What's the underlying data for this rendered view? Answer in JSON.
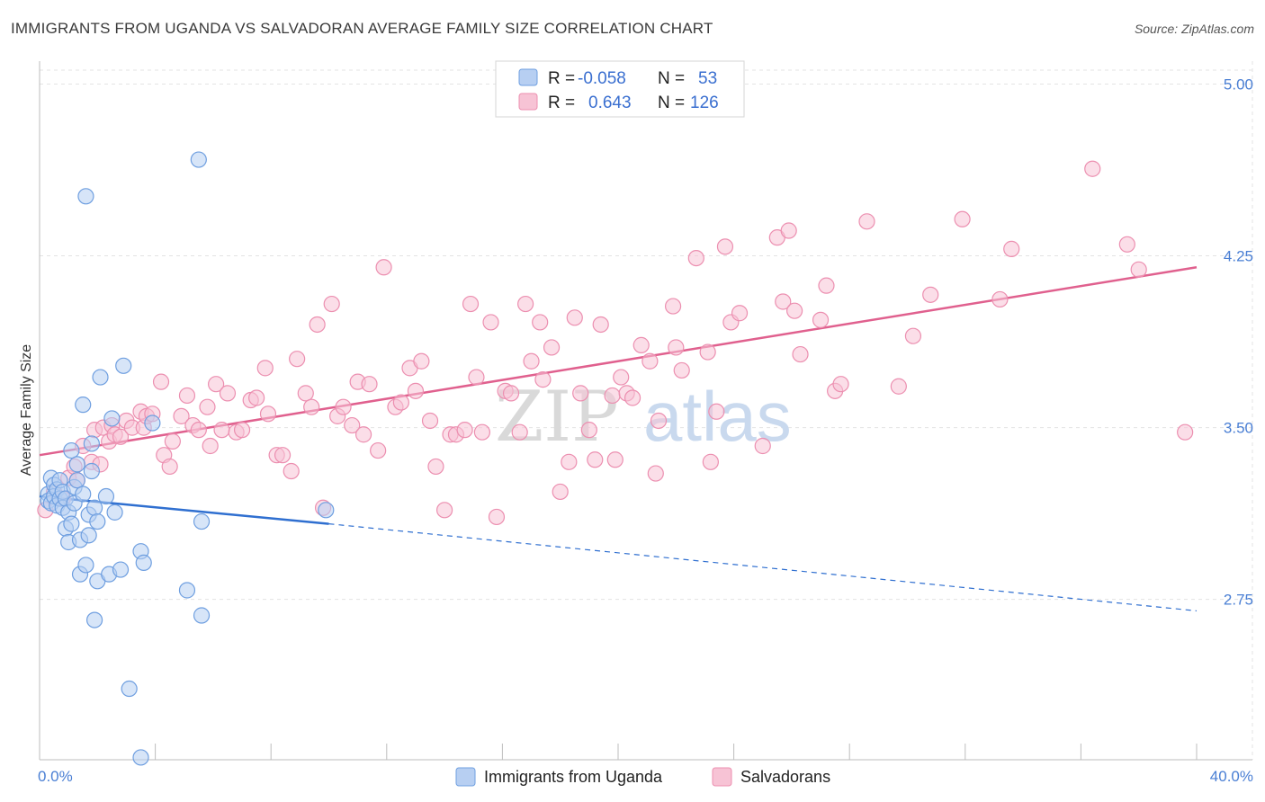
{
  "title": "IMMIGRANTS FROM UGANDA VS SALVADORAN AVERAGE FAMILY SIZE CORRELATION CHART",
  "source": "Source: ZipAtlas.com",
  "watermark": {
    "zip": "ZIP",
    "atlas": "atlas"
  },
  "legend": {
    "rows": [
      {
        "r_label": "R =",
        "r_value": "-0.058",
        "n_label": "N =",
        "n_value": "53",
        "color": "#a9c6f0"
      },
      {
        "r_label": "R =",
        "r_value": "0.643",
        "n_label": "N =",
        "n_value": "126",
        "color": "#f5b8cc"
      }
    ]
  },
  "bottom_legend": [
    {
      "label": "Immigrants from Uganda",
      "color": "#a9c6f0"
    },
    {
      "label": "Salvadorans",
      "color": "#f5b8cc"
    }
  ],
  "chart_data": {
    "type": "scatter",
    "xlabel": "",
    "ylabel": "Average Family Size",
    "xlim": [
      0,
      40
    ],
    "ylim": [
      2.05,
      5.1
    ],
    "x_tick_labels": [
      {
        "value": 0,
        "label": "0.0%"
      },
      {
        "value": 40,
        "label": "40.0%"
      }
    ],
    "y_ticks": [
      {
        "value": 2.75,
        "label": "2.75"
      },
      {
        "value": 3.5,
        "label": "3.50"
      },
      {
        "value": 4.25,
        "label": "4.25"
      },
      {
        "value": 5.0,
        "label": "5.00"
      }
    ],
    "grid": "horizontal-dashed",
    "legend_position": "top-center",
    "series": [
      {
        "name": "Immigrants from Uganda",
        "color": "#6f9fe0",
        "fill": "#b7cff2",
        "trend": {
          "x_start": 0,
          "y_start": 3.2,
          "x_solid_end": 10,
          "y_solid_end": 3.08,
          "x_end": 40,
          "y_end": 2.7,
          "color": "#2f6fd0"
        },
        "points": [
          [
            0.3,
            3.21
          ],
          [
            0.3,
            3.18
          ],
          [
            0.4,
            3.28
          ],
          [
            0.4,
            3.17
          ],
          [
            0.5,
            3.25
          ],
          [
            0.5,
            3.2
          ],
          [
            0.6,
            3.16
          ],
          [
            0.6,
            3.23
          ],
          [
            0.7,
            3.27
          ],
          [
            0.7,
            3.19
          ],
          [
            0.8,
            3.15
          ],
          [
            0.8,
            3.22
          ],
          [
            0.9,
            3.19
          ],
          [
            0.9,
            3.06
          ],
          [
            1.0,
            3.13
          ],
          [
            1.0,
            3.0
          ],
          [
            1.1,
            3.4
          ],
          [
            1.1,
            3.08
          ],
          [
            1.2,
            3.24
          ],
          [
            1.2,
            3.17
          ],
          [
            1.3,
            3.34
          ],
          [
            1.3,
            3.27
          ],
          [
            1.4,
            3.01
          ],
          [
            1.4,
            2.86
          ],
          [
            1.5,
            3.21
          ],
          [
            1.5,
            3.6
          ],
          [
            1.6,
            4.51
          ],
          [
            1.6,
            2.9
          ],
          [
            1.7,
            3.03
          ],
          [
            1.7,
            3.12
          ],
          [
            1.8,
            3.43
          ],
          [
            1.8,
            3.31
          ],
          [
            1.9,
            3.15
          ],
          [
            1.9,
            2.66
          ],
          [
            2.0,
            3.09
          ],
          [
            2.0,
            2.83
          ],
          [
            2.1,
            3.72
          ],
          [
            2.3,
            3.2
          ],
          [
            2.4,
            2.86
          ],
          [
            2.5,
            3.54
          ],
          [
            2.6,
            3.13
          ],
          [
            2.8,
            2.88
          ],
          [
            2.9,
            3.77
          ],
          [
            3.1,
            2.36
          ],
          [
            3.5,
            2.96
          ],
          [
            3.5,
            2.06
          ],
          [
            3.6,
            2.91
          ],
          [
            3.9,
            3.52
          ],
          [
            5.1,
            2.79
          ],
          [
            5.5,
            4.67
          ],
          [
            5.6,
            2.68
          ],
          [
            5.6,
            3.09
          ],
          [
            9.9,
            3.14
          ]
        ]
      },
      {
        "name": "Salvadorans",
        "color": "#ec8fb0",
        "fill": "#f7c3d5",
        "trend": {
          "x_start": 0,
          "y_start": 3.38,
          "x_end": 40,
          "y_end": 4.2,
          "color": "#e0608e"
        },
        "points": [
          [
            0.2,
            3.14
          ],
          [
            0.5,
            3.22
          ],
          [
            0.8,
            3.19
          ],
          [
            1.0,
            3.28
          ],
          [
            1.2,
            3.33
          ],
          [
            1.3,
            3.27
          ],
          [
            1.5,
            3.42
          ],
          [
            1.8,
            3.35
          ],
          [
            1.9,
            3.49
          ],
          [
            2.1,
            3.34
          ],
          [
            2.2,
            3.5
          ],
          [
            2.4,
            3.44
          ],
          [
            2.5,
            3.51
          ],
          [
            2.6,
            3.47
          ],
          [
            2.8,
            3.46
          ],
          [
            3.0,
            3.53
          ],
          [
            3.2,
            3.5
          ],
          [
            3.5,
            3.57
          ],
          [
            3.6,
            3.5
          ],
          [
            3.7,
            3.55
          ],
          [
            3.9,
            3.56
          ],
          [
            4.2,
            3.7
          ],
          [
            4.3,
            3.38
          ],
          [
            4.5,
            3.33
          ],
          [
            4.6,
            3.44
          ],
          [
            4.9,
            3.55
          ],
          [
            5.1,
            3.64
          ],
          [
            5.3,
            3.51
          ],
          [
            5.5,
            3.49
          ],
          [
            5.8,
            3.59
          ],
          [
            5.9,
            3.42
          ],
          [
            6.1,
            3.69
          ],
          [
            6.3,
            3.49
          ],
          [
            6.5,
            3.65
          ],
          [
            6.8,
            3.48
          ],
          [
            7.0,
            3.49
          ],
          [
            7.3,
            3.62
          ],
          [
            7.5,
            3.63
          ],
          [
            7.8,
            3.76
          ],
          [
            7.9,
            3.56
          ],
          [
            8.2,
            3.38
          ],
          [
            8.4,
            3.38
          ],
          [
            8.7,
            3.31
          ],
          [
            8.9,
            3.8
          ],
          [
            9.2,
            3.65
          ],
          [
            9.4,
            3.59
          ],
          [
            9.6,
            3.95
          ],
          [
            9.8,
            3.15
          ],
          [
            10.1,
            4.04
          ],
          [
            10.3,
            3.55
          ],
          [
            10.5,
            3.59
          ],
          [
            10.8,
            3.51
          ],
          [
            11.0,
            3.7
          ],
          [
            11.2,
            3.47
          ],
          [
            11.4,
            3.69
          ],
          [
            11.7,
            3.4
          ],
          [
            11.9,
            4.2
          ],
          [
            12.3,
            3.59
          ],
          [
            12.5,
            3.61
          ],
          [
            12.8,
            3.76
          ],
          [
            13.0,
            3.66
          ],
          [
            13.2,
            3.79
          ],
          [
            13.5,
            3.53
          ],
          [
            13.7,
            3.33
          ],
          [
            14.0,
            3.14
          ],
          [
            14.2,
            3.47
          ],
          [
            14.4,
            3.47
          ],
          [
            14.7,
            3.49
          ],
          [
            14.9,
            4.04
          ],
          [
            15.1,
            3.72
          ],
          [
            15.3,
            3.48
          ],
          [
            15.6,
            3.96
          ],
          [
            15.8,
            3.11
          ],
          [
            16.1,
            3.66
          ],
          [
            16.3,
            3.65
          ],
          [
            16.6,
            3.48
          ],
          [
            16.8,
            4.04
          ],
          [
            17.0,
            3.79
          ],
          [
            17.3,
            3.96
          ],
          [
            17.4,
            3.71
          ],
          [
            17.7,
            3.85
          ],
          [
            18.0,
            3.22
          ],
          [
            18.3,
            3.35
          ],
          [
            18.5,
            3.98
          ],
          [
            18.7,
            3.65
          ],
          [
            19.0,
            3.49
          ],
          [
            19.2,
            3.36
          ],
          [
            19.4,
            3.95
          ],
          [
            19.8,
            3.64
          ],
          [
            19.9,
            3.36
          ],
          [
            20.1,
            3.72
          ],
          [
            20.3,
            3.65
          ],
          [
            20.5,
            3.63
          ],
          [
            20.8,
            3.86
          ],
          [
            21.1,
            3.79
          ],
          [
            21.3,
            3.3
          ],
          [
            21.4,
            3.53
          ],
          [
            21.9,
            4.03
          ],
          [
            22.0,
            3.85
          ],
          [
            22.2,
            3.75
          ],
          [
            22.7,
            4.24
          ],
          [
            23.1,
            3.83
          ],
          [
            23.2,
            3.35
          ],
          [
            23.4,
            3.57
          ],
          [
            23.7,
            4.29
          ],
          [
            23.9,
            3.96
          ],
          [
            24.2,
            4.0
          ],
          [
            25.0,
            3.42
          ],
          [
            25.5,
            4.33
          ],
          [
            25.7,
            4.05
          ],
          [
            25.9,
            4.36
          ],
          [
            26.1,
            4.01
          ],
          [
            26.3,
            3.82
          ],
          [
            27.0,
            3.97
          ],
          [
            27.2,
            4.12
          ],
          [
            27.5,
            3.66
          ],
          [
            27.7,
            3.69
          ],
          [
            28.6,
            4.4
          ],
          [
            29.7,
            3.68
          ],
          [
            30.2,
            3.9
          ],
          [
            30.8,
            4.08
          ],
          [
            31.9,
            4.41
          ],
          [
            33.2,
            4.06
          ],
          [
            33.6,
            4.28
          ],
          [
            36.4,
            4.63
          ],
          [
            37.6,
            4.3
          ],
          [
            38.0,
            4.19
          ],
          [
            39.6,
            3.48
          ]
        ]
      }
    ]
  }
}
